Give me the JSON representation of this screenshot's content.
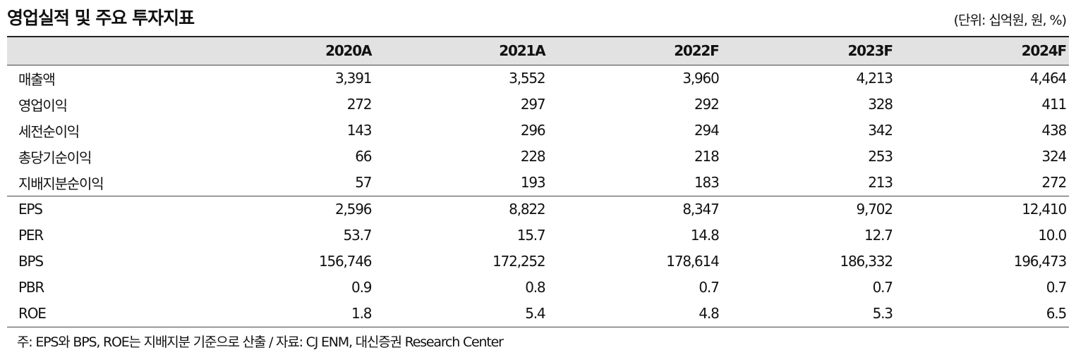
{
  "header": {
    "title": "영업실적 및 주요 투자지표",
    "unit": "(단위: 십억원, 원, %)"
  },
  "table": {
    "columns": [
      "",
      "2020A",
      "2021A",
      "2022F",
      "2023F",
      "2024F"
    ],
    "rows": [
      {
        "label": "매출액",
        "values": [
          "3,391",
          "3,552",
          "3,960",
          "4,213",
          "4,464"
        ]
      },
      {
        "label": "영업이익",
        "values": [
          "272",
          "297",
          "292",
          "328",
          "411"
        ]
      },
      {
        "label": "세전순이익",
        "values": [
          "143",
          "296",
          "294",
          "342",
          "438"
        ]
      },
      {
        "label": "총당기순이익",
        "values": [
          "66",
          "228",
          "218",
          "253",
          "324"
        ]
      },
      {
        "label": "지배지분순이익",
        "values": [
          "57",
          "193",
          "183",
          "213",
          "272"
        ]
      },
      {
        "label": "EPS",
        "values": [
          "2,596",
          "8,822",
          "8,347",
          "9,702",
          "12,410"
        ]
      },
      {
        "label": "PER",
        "values": [
          "53.7",
          "15.7",
          "14.8",
          "12.7",
          "10.0"
        ]
      },
      {
        "label": "BPS",
        "values": [
          "156,746",
          "172,252",
          "178,614",
          "186,332",
          "196,473"
        ]
      },
      {
        "label": "PBR",
        "values": [
          "0.9",
          "0.8",
          "0.7",
          "0.7",
          "0.7"
        ]
      },
      {
        "label": "ROE",
        "values": [
          "1.8",
          "5.4",
          "4.8",
          "5.3",
          "6.5"
        ]
      }
    ]
  },
  "footnote": "주: EPS와 BPS, ROE는 지배지분 기준으로 산출 / 자료: CJ ENM, 대신증권 Research Center"
}
